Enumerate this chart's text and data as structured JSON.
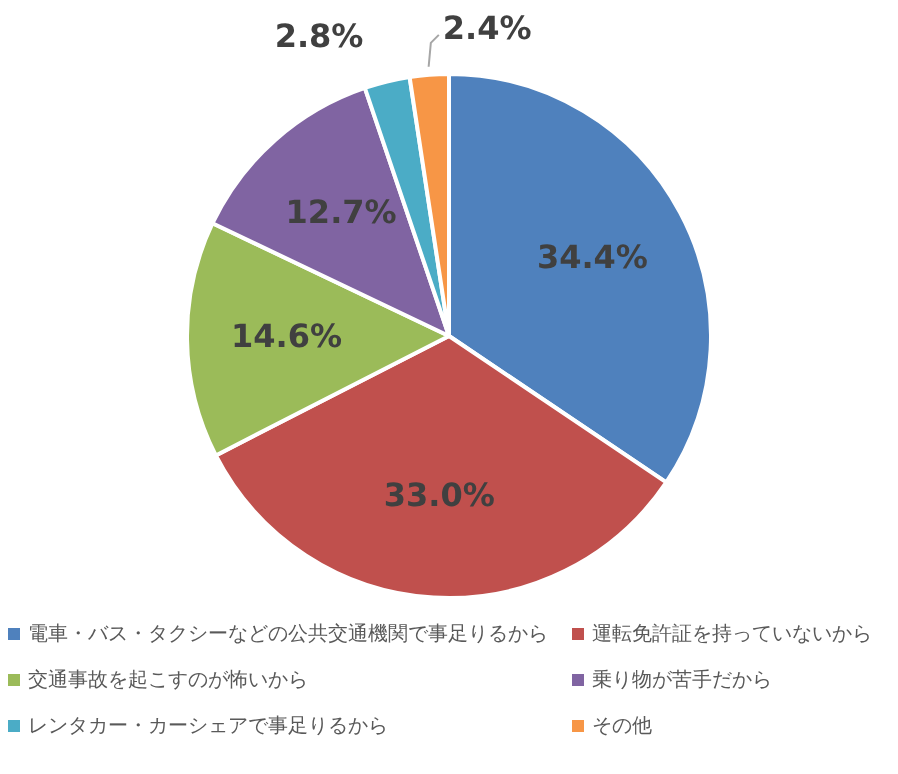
{
  "chart_data": {
    "type": "pie",
    "categories": [
      "電車・バス・タクシーなどの公共交通機関で事足りるから",
      "運転免許証を持っていないから",
      "交通事故を起こすのが怖いから",
      "乗り物が苦手だから",
      "レンタカー・カーシェアで事足りるから",
      "その他"
    ],
    "values": [
      34.4,
      33.0,
      14.6,
      12.7,
      2.8,
      2.4
    ],
    "colors": [
      "#4f81bd",
      "#c0504d",
      "#9bbb59",
      "#8064a2",
      "#4bacc6",
      "#f79646"
    ],
    "value_labels": [
      "34.4%",
      "33.0%",
      "14.6%",
      "12.7%",
      "2.8%",
      "2.4%"
    ],
    "legend": "bottom"
  }
}
